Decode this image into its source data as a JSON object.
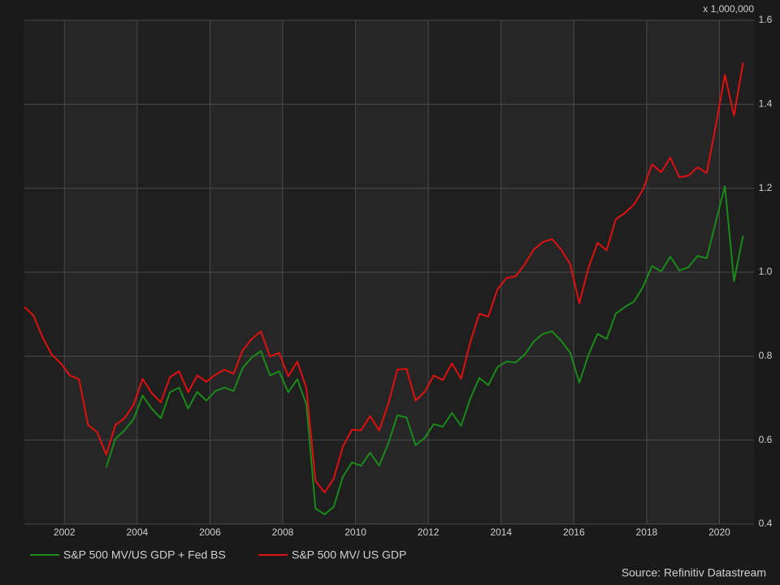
{
  "chart_data": {
    "type": "line",
    "multiplier": "x 1,000,000",
    "source": "Source: Refinitiv Datastream",
    "x": [
      2000.9,
      2001.15,
      2001.4,
      2001.65,
      2001.9,
      2002.15,
      2002.4,
      2002.65,
      2002.9,
      2003.15,
      2003.4,
      2003.65,
      2003.9,
      2004.15,
      2004.4,
      2004.65,
      2004.9,
      2005.15,
      2005.4,
      2005.65,
      2005.9,
      2006.15,
      2006.4,
      2006.65,
      2006.9,
      2007.15,
      2007.4,
      2007.65,
      2007.9,
      2008.15,
      2008.4,
      2008.65,
      2008.9,
      2009.15,
      2009.4,
      2009.65,
      2009.9,
      2010.15,
      2010.4,
      2010.65,
      2010.9,
      2011.15,
      2011.4,
      2011.65,
      2011.9,
      2012.15,
      2012.4,
      2012.65,
      2012.9,
      2013.15,
      2013.4,
      2013.65,
      2013.9,
      2014.15,
      2014.4,
      2014.65,
      2014.9,
      2015.15,
      2015.4,
      2015.65,
      2015.9,
      2016.15,
      2016.4,
      2016.65,
      2016.9,
      2017.15,
      2017.4,
      2017.65,
      2017.9,
      2018.15,
      2018.4,
      2018.65,
      2018.9,
      2019.15,
      2019.4,
      2019.65,
      2019.9,
      2020.15,
      2020.4,
      2020.65
    ],
    "series": [
      {
        "name": "S&P 500 MV/US GDP + Fed BS",
        "color": "#1a8a1a",
        "values": [
          null,
          null,
          null,
          null,
          null,
          null,
          null,
          null,
          null,
          0.535,
          0.603,
          0.623,
          0.65,
          0.706,
          0.675,
          0.652,
          0.714,
          0.725,
          0.675,
          0.715,
          0.694,
          0.717,
          0.725,
          0.717,
          0.772,
          0.797,
          0.812,
          0.754,
          0.764,
          0.714,
          0.745,
          0.685,
          0.437,
          0.423,
          0.441,
          0.512,
          0.547,
          0.539,
          0.57,
          0.539,
          0.592,
          0.659,
          0.654,
          0.588,
          0.605,
          0.638,
          0.632,
          0.665,
          0.634,
          0.698,
          0.748,
          0.731,
          0.774,
          0.787,
          0.785,
          0.804,
          0.835,
          0.853,
          0.859,
          0.837,
          0.808,
          0.737,
          0.803,
          0.853,
          0.841,
          0.901,
          0.917,
          0.93,
          0.965,
          1.015,
          1.002,
          1.037,
          1.004,
          1.012,
          1.039,
          1.033,
          1.12,
          1.205,
          0.979,
          1.087
        ]
      },
      {
        "name": "S&P 500  MV/ US GDP",
        "color": "#e01010",
        "values": [
          0.917,
          0.897,
          0.845,
          0.804,
          0.783,
          0.754,
          0.745,
          0.636,
          0.619,
          0.565,
          0.636,
          0.652,
          0.684,
          0.746,
          0.712,
          0.69,
          0.75,
          0.764,
          0.714,
          0.754,
          0.739,
          0.756,
          0.768,
          0.758,
          0.814,
          0.841,
          0.859,
          0.799,
          0.808,
          0.752,
          0.787,
          0.723,
          0.503,
          0.475,
          0.508,
          0.584,
          0.625,
          0.623,
          0.657,
          0.623,
          0.686,
          0.768,
          0.77,
          0.694,
          0.715,
          0.754,
          0.743,
          0.783,
          0.746,
          0.832,
          0.901,
          0.894,
          0.959,
          0.986,
          0.99,
          1.019,
          1.054,
          1.072,
          1.079,
          1.054,
          1.019,
          0.926,
          1.01,
          1.07,
          1.052,
          1.126,
          1.141,
          1.161,
          1.197,
          1.257,
          1.238,
          1.273,
          1.226,
          1.23,
          1.25,
          1.236,
          1.349,
          1.47,
          1.373,
          1.499
        ]
      }
    ],
    "xlim": [
      2000.9,
      2020.95
    ],
    "xticks": [
      2002,
      2004,
      2006,
      2008,
      2010,
      2012,
      2014,
      2016,
      2018,
      2020
    ],
    "ylim": [
      0.4,
      1.6
    ],
    "yticks": [
      0.4,
      0.6,
      0.8,
      {
        "value": 1,
        "label": "1.0"
      },
      1.2,
      1.4,
      1.6
    ],
    "grid": true
  }
}
